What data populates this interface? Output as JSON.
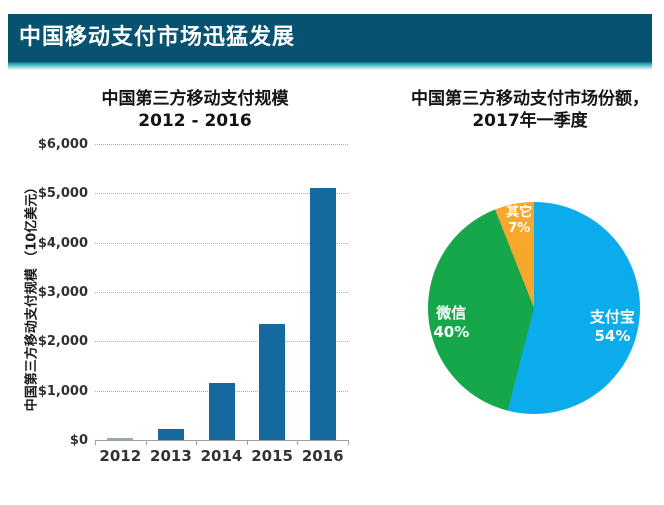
{
  "header": {
    "title": "中国移动支付市场迅猛发展",
    "banner_color": "#075270",
    "underline_color": "#49BCC3"
  },
  "chart_data": [
    {
      "type": "bar",
      "title": "中国第三方移动支付规模",
      "subtitle": "2012 - 2016",
      "ylabel": "中国第三方移动支付规模 （10亿美元）",
      "xlabel": "",
      "categories": [
        "2012",
        "2013",
        "2014",
        "2015",
        "2016"
      ],
      "values": [
        40,
        230,
        1150,
        2350,
        5100
      ],
      "ylim": [
        0,
        6000
      ],
      "ytick_step": 1000,
      "ytick_labels": [
        "$6,000",
        "$5,000",
        "$4,000",
        "$3,000",
        "$2,000",
        "$1,000",
        "$0"
      ],
      "grid": "horizontal-dotted",
      "bar_color": "#15699E",
      "tiny_bar_color": "#93A9B4"
    },
    {
      "type": "pie",
      "title": "中国第三方移动支付市场份额，",
      "subtitle": "2017年一季度",
      "start_angle_deg": 0,
      "direction": "clockwise",
      "legend_position": "labels-inside-slices",
      "slices": [
        {
          "label": "支付宝",
          "pct_label": "54%",
          "value_pct": 54,
          "color": "#0AACEC",
          "label_x_pct": 87,
          "label_y_pct": 59,
          "small": false
        },
        {
          "label": "微信",
          "pct_label": "40%",
          "value_pct": 40,
          "color": "#16A74A",
          "label_x_pct": 11,
          "label_y_pct": 57,
          "small": false
        },
        {
          "label": "其它",
          "pct_label": "7%",
          "value_pct": 7,
          "color": "#F6A82C",
          "label_x_pct": 43,
          "label_y_pct": 9,
          "small": true
        }
      ]
    }
  ]
}
